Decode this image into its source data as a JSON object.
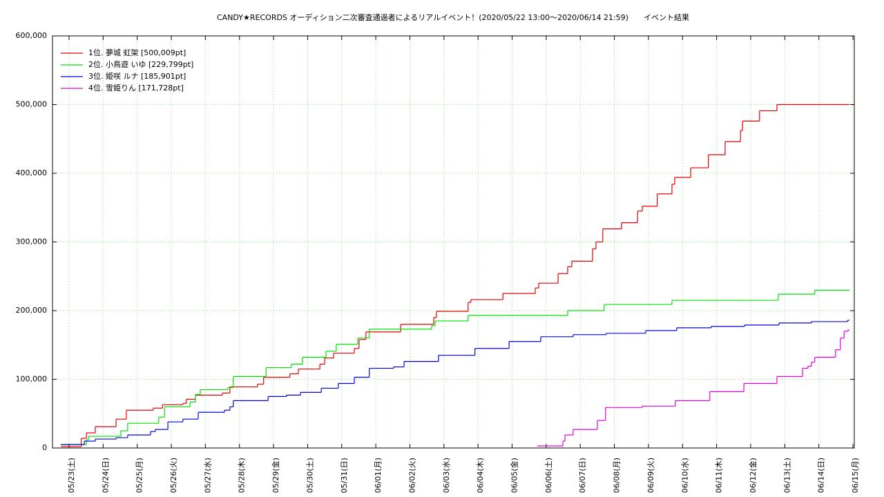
{
  "chart_data": {
    "type": "line",
    "step": true,
    "title": "CANDY★RECORDS オーディション二次審査通過者によるリアルイベント！(2020/05/22 13:00〜2020/06/14 21:59)　　イベント結果",
    "xlim": [
      -0.486,
      23.04
    ],
    "ylim": [
      0,
      600000
    ],
    "grid": true,
    "legend": "top-left",
    "xticks": [
      {
        "value": 0,
        "label": "05/23(土)"
      },
      {
        "value": 1,
        "label": "05/24(日)"
      },
      {
        "value": 2,
        "label": "05/25(月)"
      },
      {
        "value": 3,
        "label": "05/26(火)"
      },
      {
        "value": 4,
        "label": "05/27(水)"
      },
      {
        "value": 5,
        "label": "05/28(木)"
      },
      {
        "value": 6,
        "label": "05/29(金)"
      },
      {
        "value": 7,
        "label": "05/30(土)"
      },
      {
        "value": 8,
        "label": "05/31(日)"
      },
      {
        "value": 9,
        "label": "06/01(月)"
      },
      {
        "value": 10,
        "label": "06/02(火)"
      },
      {
        "value": 11,
        "label": "06/03(水)"
      },
      {
        "value": 12,
        "label": "06/04(木)"
      },
      {
        "value": 13,
        "label": "06/05(金)"
      },
      {
        "value": 14,
        "label": "06/06(土)"
      },
      {
        "value": 15,
        "label": "06/07(日)"
      },
      {
        "value": 16,
        "label": "06/08(月)"
      },
      {
        "value": 17,
        "label": "06/09(火)"
      },
      {
        "value": 18,
        "label": "06/10(水)"
      },
      {
        "value": 19,
        "label": "06/11(木)"
      },
      {
        "value": 20,
        "label": "06/12(金)"
      },
      {
        "value": 21,
        "label": "06/13(土)"
      },
      {
        "value": 22,
        "label": "06/14(日)"
      },
      {
        "value": 23,
        "label": "06/15(月)"
      }
    ],
    "yticks": [
      0,
      {
        "value": 100000,
        "label": "100,000"
      },
      {
        "value": 200000,
        "label": "200,000"
      },
      {
        "value": 300000,
        "label": "300,000"
      },
      {
        "value": 400000,
        "label": "400,000"
      },
      {
        "value": 500000,
        "label": "500,000"
      },
      {
        "value": 600000,
        "label": "600,000"
      }
    ],
    "series": [
      {
        "name": "1位. 夢城 虹架 [500,009pt]",
        "color": "#e00000",
        "x": [
          -0.24,
          0.36,
          0.51,
          0.77,
          1.38,
          1.68,
          2.47,
          2.74,
          3.34,
          3.44,
          3.71,
          4.5,
          4.72,
          5.53,
          5.71,
          6.48,
          6.73,
          7.36,
          7.5,
          7.76,
          8.37,
          8.51,
          8.71,
          9.73,
          10.7,
          10.78,
          11.71,
          11.79,
          12.73,
          13.68,
          13.78,
          14.35,
          14.63,
          14.75,
          15.36,
          15.46,
          15.66,
          16.21,
          16.68,
          16.82,
          17.26,
          17.69,
          17.77,
          18.24,
          18.76,
          19.25,
          19.7,
          19.76,
          20.26,
          20.77,
          22.9
        ],
        "values": [
          2000,
          14000,
          22000,
          31000,
          42000,
          55000,
          58000,
          63000,
          65000,
          71000,
          77000,
          80000,
          89000,
          93000,
          103000,
          108000,
          115000,
          122000,
          131000,
          138000,
          145000,
          158000,
          169000,
          180000,
          190000,
          199000,
          212000,
          216000,
          225000,
          233000,
          240000,
          254000,
          264000,
          272000,
          290000,
          300000,
          319000,
          328000,
          345000,
          352000,
          370000,
          384000,
          394000,
          408000,
          427000,
          446000,
          462000,
          476000,
          491000,
          500009,
          500009
        ]
      },
      {
        "name": "2位. 小鳥遊 いゆ [229,799pt]",
        "color": "#00e000",
        "x": [
          -0.24,
          0.51,
          0.57,
          1.52,
          1.72,
          2.63,
          2.8,
          3.55,
          3.71,
          3.85,
          4.66,
          4.82,
          5.78,
          6.52,
          6.85,
          7.54,
          7.84,
          8.47,
          8.81,
          10.64,
          10.74,
          11.71,
          14.63,
          15.7,
          17.69,
          20.81,
          21.88,
          22.9
        ],
        "values": [
          5000,
          12000,
          17000,
          25000,
          36000,
          45000,
          60000,
          67000,
          78000,
          85000,
          88000,
          104000,
          117000,
          122000,
          132000,
          141000,
          151000,
          160000,
          173000,
          178000,
          185000,
          193000,
          200000,
          209000,
          215000,
          224000,
          229799,
          229799
        ]
      },
      {
        "name": "3位. 姫咲 ルナ [185,901pt]",
        "color": "#0000e0",
        "x": [
          -0.24,
          0.45,
          0.77,
          1.38,
          1.72,
          2.39,
          2.53,
          2.9,
          3.34,
          3.79,
          4.56,
          4.72,
          4.82,
          5.84,
          6.38,
          6.79,
          7.4,
          7.9,
          8.37,
          8.81,
          9.52,
          9.83,
          10.84,
          11.91,
          12.91,
          13.84,
          14.79,
          15.76,
          16.92,
          17.83,
          18.84,
          19.82,
          20.83,
          21.78,
          22.84,
          22.9
        ],
        "values": [
          5000,
          10000,
          13000,
          15000,
          19000,
          24000,
          27000,
          38000,
          42000,
          52000,
          55000,
          60000,
          69000,
          75000,
          77000,
          81000,
          87000,
          94000,
          103000,
          116000,
          118000,
          126000,
          135000,
          145000,
          155000,
          162000,
          165000,
          167000,
          171000,
          175000,
          177000,
          179000,
          182000,
          184000,
          185901,
          185901
        ]
      },
      {
        "name": "4位. 雪姫りん [171,728pt]",
        "color": "#e000e0",
        "x": [
          13.74,
          14.49,
          14.55,
          14.79,
          15.5,
          15.74,
          16.82,
          17.79,
          18.8,
          19.8,
          20.77,
          21.52,
          21.68,
          21.78,
          21.88,
          22.49,
          22.63,
          22.74,
          22.86,
          22.9
        ],
        "values": [
          3000,
          10000,
          19000,
          27000,
          40000,
          59000,
          61000,
          69000,
          82000,
          94000,
          104000,
          116000,
          119000,
          125000,
          132000,
          143000,
          160000,
          170000,
          171728,
          171728
        ]
      }
    ]
  }
}
